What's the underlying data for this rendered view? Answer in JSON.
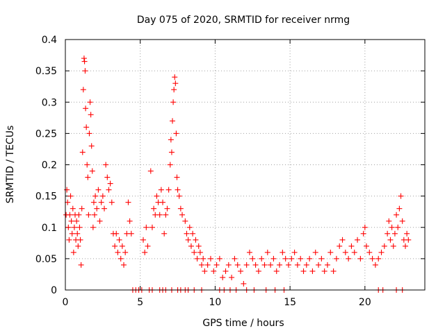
{
  "chart_data": {
    "type": "scatter",
    "title": "Day 075 of 2020, SRMTID for receiver nrmg",
    "xlabel": "GPS time / hours",
    "ylabel": "SRMTID / TECUs",
    "xlim": [
      0,
      24
    ],
    "ylim": [
      0,
      0.4
    ],
    "xticks": [
      0,
      5,
      10,
      15,
      20
    ],
    "yticks": [
      0,
      0.05,
      0.1,
      0.15,
      0.2,
      0.25,
      0.3,
      0.35,
      0.4
    ],
    "xtick_labels": [
      "0",
      "5",
      "10",
      "15",
      "20"
    ],
    "ytick_labels": [
      "0",
      "0.05",
      "0.1",
      "0.15",
      "0.2",
      "0.25",
      "0.3",
      "0.35",
      "0.4"
    ],
    "grid": true,
    "marker": "+",
    "color": "#ff0000",
    "series": [
      {
        "name": "SRMTID",
        "points": [
          [
            0.05,
            0.12
          ],
          [
            0.1,
            0.16
          ],
          [
            0.15,
            0.14
          ],
          [
            0.2,
            0.1
          ],
          [
            0.25,
            0.08
          ],
          [
            0.3,
            0.12
          ],
          [
            0.35,
            0.15
          ],
          [
            0.4,
            0.11
          ],
          [
            0.45,
            0.09
          ],
          [
            0.5,
            0.13
          ],
          [
            0.55,
            0.06
          ],
          [
            0.6,
            0.1
          ],
          [
            0.65,
            0.12
          ],
          [
            0.7,
            0.08
          ],
          [
            0.75,
            0.11
          ],
          [
            0.8,
            0.09
          ],
          [
            0.85,
            0.07
          ],
          [
            0.9,
            0.12
          ],
          [
            0.95,
            0.1
          ],
          [
            1.0,
            0.08
          ],
          [
            1.05,
            0.04
          ],
          [
            1.1,
            0.13
          ],
          [
            1.15,
            0.22
          ],
          [
            1.2,
            0.32
          ],
          [
            1.25,
            0.37
          ],
          [
            1.28,
            0.365
          ],
          [
            1.32,
            0.35
          ],
          [
            1.35,
            0.29
          ],
          [
            1.4,
            0.26
          ],
          [
            1.45,
            0.2
          ],
          [
            1.5,
            0.18
          ],
          [
            1.55,
            0.12
          ],
          [
            1.6,
            0.25
          ],
          [
            1.65,
            0.3
          ],
          [
            1.7,
            0.28
          ],
          [
            1.75,
            0.23
          ],
          [
            1.8,
            0.19
          ],
          [
            1.85,
            0.1
          ],
          [
            1.9,
            0.14
          ],
          [
            1.95,
            0.12
          ],
          [
            2.0,
            0.15
          ],
          [
            2.1,
            0.13
          ],
          [
            2.2,
            0.16
          ],
          [
            2.3,
            0.11
          ],
          [
            2.4,
            0.14
          ],
          [
            2.5,
            0.15
          ],
          [
            2.6,
            0.13
          ],
          [
            2.7,
            0.2
          ],
          [
            2.8,
            0.18
          ],
          [
            2.9,
            0.16
          ],
          [
            3.0,
            0.17
          ],
          [
            3.1,
            0.14
          ],
          [
            3.2,
            0.09
          ],
          [
            3.3,
            0.07
          ],
          [
            3.4,
            0.09
          ],
          [
            3.5,
            0.06
          ],
          [
            3.6,
            0.08
          ],
          [
            3.7,
            0.05
          ],
          [
            3.8,
            0.07
          ],
          [
            3.9,
            0.04
          ],
          [
            4.0,
            0.06
          ],
          [
            4.1,
            0.09
          ],
          [
            4.2,
            0.14
          ],
          [
            4.3,
            0.11
          ],
          [
            4.4,
            0.09
          ],
          [
            5.2,
            0.08
          ],
          [
            5.3,
            0.06
          ],
          [
            5.4,
            0.1
          ],
          [
            5.5,
            0.07
          ],
          [
            5.7,
            0.19
          ],
          [
            5.8,
            0.1
          ],
          [
            5.9,
            0.13
          ],
          [
            6.0,
            0.12
          ],
          [
            6.1,
            0.15
          ],
          [
            6.2,
            0.14
          ],
          [
            6.3,
            0.12
          ],
          [
            6.4,
            0.16
          ],
          [
            6.5,
            0.14
          ],
          [
            6.6,
            0.09
          ],
          [
            6.7,
            0.12
          ],
          [
            6.8,
            0.13
          ],
          [
            6.9,
            0.16
          ],
          [
            7.0,
            0.2
          ],
          [
            7.05,
            0.24
          ],
          [
            7.1,
            0.22
          ],
          [
            7.15,
            0.27
          ],
          [
            7.2,
            0.3
          ],
          [
            7.25,
            0.32
          ],
          [
            7.3,
            0.34
          ],
          [
            7.35,
            0.33
          ],
          [
            7.4,
            0.25
          ],
          [
            7.45,
            0.18
          ],
          [
            7.5,
            0.16
          ],
          [
            7.6,
            0.15
          ],
          [
            7.7,
            0.13
          ],
          [
            7.8,
            0.12
          ],
          [
            8.0,
            0.11
          ],
          [
            8.1,
            0.09
          ],
          [
            8.2,
            0.08
          ],
          [
            8.3,
            0.1
          ],
          [
            8.4,
            0.07
          ],
          [
            8.5,
            0.09
          ],
          [
            8.6,
            0.06
          ],
          [
            8.7,
            0.08
          ],
          [
            8.8,
            0.05
          ],
          [
            8.9,
            0.07
          ],
          [
            9.0,
            0.06
          ],
          [
            9.1,
            0.04
          ],
          [
            9.2,
            0.05
          ],
          [
            9.3,
            0.03
          ],
          [
            9.5,
            0.04
          ],
          [
            9.7,
            0.05
          ],
          [
            9.9,
            0.03
          ],
          [
            10.1,
            0.04
          ],
          [
            10.3,
            0.05
          ],
          [
            10.5,
            0.02
          ],
          [
            10.7,
            0.03
          ],
          [
            10.9,
            0.04
          ],
          [
            11.1,
            0.02
          ],
          [
            11.3,
            0.05
          ],
          [
            11.5,
            0.04
          ],
          [
            11.7,
            0.03
          ],
          [
            11.9,
            0.01
          ],
          [
            12.1,
            0.04
          ],
          [
            12.3,
            0.06
          ],
          [
            12.5,
            0.05
          ],
          [
            12.7,
            0.04
          ],
          [
            12.9,
            0.03
          ],
          [
            13.1,
            0.05
          ],
          [
            13.3,
            0.04
          ],
          [
            13.5,
            0.06
          ],
          [
            13.7,
            0.04
          ],
          [
            13.9,
            0.05
          ],
          [
            14.1,
            0.03
          ],
          [
            14.3,
            0.04
          ],
          [
            14.5,
            0.06
          ],
          [
            14.7,
            0.05
          ],
          [
            14.9,
            0.04
          ],
          [
            15.1,
            0.05
          ],
          [
            15.3,
            0.06
          ],
          [
            15.5,
            0.04
          ],
          [
            15.7,
            0.05
          ],
          [
            15.9,
            0.03
          ],
          [
            16.1,
            0.04
          ],
          [
            16.3,
            0.05
          ],
          [
            16.5,
            0.03
          ],
          [
            16.7,
            0.06
          ],
          [
            16.9,
            0.04
          ],
          [
            17.1,
            0.05
          ],
          [
            17.3,
            0.03
          ],
          [
            17.5,
            0.04
          ],
          [
            17.7,
            0.06
          ],
          [
            17.9,
            0.03
          ],
          [
            18.1,
            0.05
          ],
          [
            18.3,
            0.07
          ],
          [
            18.5,
            0.08
          ],
          [
            18.7,
            0.06
          ],
          [
            18.9,
            0.05
          ],
          [
            19.1,
            0.07
          ],
          [
            19.3,
            0.06
          ],
          [
            19.5,
            0.08
          ],
          [
            19.7,
            0.05
          ],
          [
            19.9,
            0.09
          ],
          [
            20.0,
            0.1
          ],
          [
            20.1,
            0.07
          ],
          [
            20.3,
            0.06
          ],
          [
            20.5,
            0.05
          ],
          [
            20.7,
            0.04
          ],
          [
            20.9,
            0.05
          ],
          [
            21.1,
            0.06
          ],
          [
            21.3,
            0.07
          ],
          [
            21.5,
            0.09
          ],
          [
            21.6,
            0.11
          ],
          [
            21.7,
            0.08
          ],
          [
            21.8,
            0.1
          ],
          [
            21.9,
            0.07
          ],
          [
            22.0,
            0.09
          ],
          [
            22.1,
            0.12
          ],
          [
            22.2,
            0.1
          ],
          [
            22.3,
            0.13
          ],
          [
            22.4,
            0.15
          ],
          [
            22.5,
            0.11
          ],
          [
            22.6,
            0.08
          ],
          [
            22.7,
            0.07
          ],
          [
            22.8,
            0.09
          ],
          [
            22.9,
            0.08
          ]
        ]
      }
    ],
    "zero_line_points": [
      4.5,
      4.7,
      4.9,
      5.1,
      5.6,
      5.8,
      6.3,
      6.5,
      6.7,
      7.1,
      7.5,
      7.7,
      8.0,
      8.2,
      8.6,
      9.1,
      10.3,
      10.6,
      11.0,
      11.4,
      12.1,
      12.6,
      13.4,
      14.0,
      14.6,
      20.9,
      21.2,
      22.1,
      22.5
    ]
  }
}
